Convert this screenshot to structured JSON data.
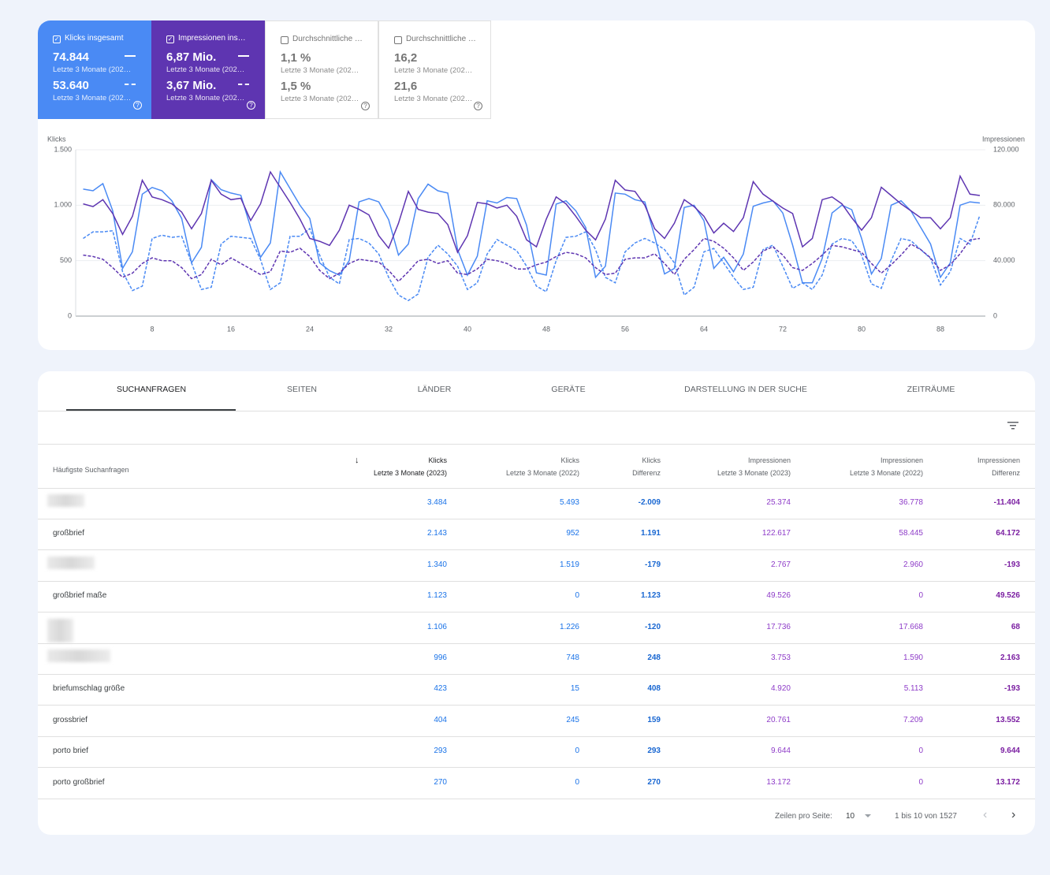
{
  "metrics": [
    {
      "label": "Klicks insgesamt",
      "current": "74.844",
      "current_period": "Letzte 3 Monate (202…",
      "previous": "53.640",
      "previous_period": "Letzte 3 Monate (202…",
      "checked": true,
      "color": "#4a8af4"
    },
    {
      "label": "Impressionen ins…",
      "current": "6,87 Mio.",
      "current_period": "Letzte 3 Monate (202…",
      "previous": "3,67 Mio.",
      "previous_period": "Letzte 3 Monate (202…",
      "checked": true,
      "color": "#5e35b1"
    },
    {
      "label": "Durchschnittliche …",
      "current": "1,1 %",
      "current_period": "Letzte 3 Monate (202…",
      "previous": "1,5 %",
      "previous_period": "Letzte 3 Monate (202…",
      "checked": false,
      "color": "#ffffff"
    },
    {
      "label": "Durchschnittliche …",
      "current": "16,2",
      "current_period": "Letzte 3 Monate (202…",
      "previous": "21,6",
      "previous_period": "Letzte 3 Monate (202…",
      "checked": false,
      "color": "#ffffff"
    }
  ],
  "chart_data": {
    "type": "line",
    "y_label": "Klicks",
    "y2_label": "Impressionen",
    "x": [
      1,
      2,
      3,
      4,
      5,
      6,
      7,
      8,
      9,
      10,
      11,
      12,
      13,
      14,
      15,
      16,
      17,
      18,
      19,
      20,
      21,
      22,
      23,
      24,
      25,
      26,
      27,
      28,
      29,
      30,
      31,
      32,
      33,
      34,
      35,
      36,
      37,
      38,
      39,
      40,
      41,
      42,
      43,
      44,
      45,
      46,
      47,
      48,
      49,
      50,
      51,
      52,
      53,
      54,
      55,
      56,
      57,
      58,
      59,
      60,
      61,
      62,
      63,
      64,
      65,
      66,
      67,
      68,
      69,
      70,
      71,
      72,
      73,
      74,
      75,
      76,
      77,
      78,
      79,
      80,
      81,
      82,
      83,
      84,
      85,
      86,
      87,
      88,
      89,
      90,
      91,
      92
    ],
    "xlim": [
      0.24,
      92.56
    ],
    "xticks": [
      8,
      16,
      24,
      32,
      40,
      48,
      56,
      64,
      72,
      80,
      88
    ],
    "ylim": [
      0,
      1500
    ],
    "yticks": [
      0,
      500,
      {
        "value": 1000,
        "label": "1.000"
      },
      {
        "value": 1500,
        "label": "1.500"
      }
    ],
    "y2lim": [
      0,
      120000
    ],
    "y2ticks": [
      0,
      {
        "value": 40000,
        "label": "40.000"
      },
      {
        "value": 80000,
        "label": "80.000"
      },
      {
        "value": 120000,
        "label": "120.000"
      }
    ],
    "grid": true,
    "series": [
      {
        "color": "#4a8af4",
        "dashed": false,
        "axis": "y",
        "values": [
          1145,
          1130,
          1195,
          950,
          430,
          580,
          1100,
          1160,
          1130,
          1040,
          880,
          480,
          620,
          1230,
          1140,
          1110,
          1090,
          800,
          530,
          660,
          1300,
          1150,
          1000,
          880,
          480,
          410,
          370,
          500,
          1030,
          1060,
          1030,
          870,
          550,
          650,
          1060,
          1190,
          1130,
          1110,
          600,
          370,
          540,
          1040,
          1020,
          1070,
          1060,
          820,
          390,
          370,
          1010,
          1040,
          950,
          800,
          350,
          450,
          1110,
          1100,
          1050,
          1030,
          720,
          380,
          430,
          980,
          1000,
          860,
          430,
          530,
          400,
          560,
          990,
          1020,
          1040,
          930,
          640,
          300,
          300,
          520,
          930,
          1000,
          960,
          700,
          380,
          520,
          1000,
          1040,
          950,
          800,
          650,
          350,
          480,
          1000,
          1030,
          1020
        ]
      },
      {
        "color": "#4a8af4",
        "dashed": true,
        "axis": "y",
        "values": [
          700,
          760,
          760,
          770,
          400,
          230,
          270,
          700,
          730,
          710,
          720,
          480,
          240,
          260,
          650,
          720,
          710,
          700,
          510,
          240,
          300,
          720,
          720,
          790,
          550,
          350,
          290,
          690,
          700,
          660,
          560,
          350,
          190,
          140,
          200,
          530,
          640,
          560,
          450,
          240,
          300,
          560,
          690,
          640,
          590,
          450,
          270,
          220,
          500,
          710,
          720,
          760,
          600,
          350,
          300,
          580,
          660,
          700,
          660,
          600,
          480,
          190,
          260,
          580,
          610,
          480,
          350,
          240,
          260,
          600,
          640,
          450,
          250,
          300,
          240,
          370,
          650,
          700,
          680,
          550,
          290,
          250,
          500,
          700,
          680,
          600,
          520,
          280,
          400,
          700,
          650,
          910
        ]
      },
      {
        "color": "#5e35b1",
        "dashed": false,
        "axis": "y2",
        "values": [
          81000,
          79000,
          84000,
          74000,
          59000,
          72000,
          98000,
          86000,
          84000,
          81000,
          75000,
          63000,
          74000,
          98000,
          88000,
          84000,
          85000,
          69000,
          81000,
          104000,
          93000,
          82000,
          70000,
          56000,
          54000,
          51000,
          62000,
          80000,
          77000,
          73000,
          58000,
          49000,
          67000,
          90000,
          77000,
          75000,
          74000,
          66000,
          46000,
          58000,
          82000,
          81000,
          78000,
          80000,
          72000,
          55000,
          50000,
          70000,
          86000,
          81000,
          72000,
          62000,
          55000,
          70000,
          98000,
          91000,
          90000,
          80000,
          63000,
          56000,
          67000,
          84000,
          79000,
          72000,
          60000,
          67000,
          61000,
          71000,
          97000,
          88000,
          83000,
          78000,
          74000,
          50000,
          56000,
          84000,
          86000,
          81000,
          71000,
          62000,
          71000,
          93000,
          87000,
          81000,
          76000,
          71000,
          71000,
          63000,
          71000,
          101000,
          88000,
          87000
        ]
      },
      {
        "color": "#5e35b1",
        "dashed": true,
        "axis": "y2",
        "values": [
          44000,
          43000,
          41000,
          35000,
          28000,
          31000,
          38000,
          42000,
          40000,
          40000,
          35000,
          27000,
          30000,
          41000,
          37000,
          42000,
          38000,
          34000,
          30000,
          32000,
          47000,
          46000,
          49000,
          43000,
          33000,
          27000,
          31000,
          38000,
          41000,
          40000,
          39000,
          33000,
          25000,
          32000,
          40000,
          41000,
          38000,
          40000,
          31000,
          30000,
          34000,
          41000,
          40000,
          38000,
          34000,
          34000,
          37000,
          39000,
          43000,
          46000,
          45000,
          42000,
          35000,
          30000,
          31000,
          41000,
          42000,
          42000,
          45000,
          38000,
          30000,
          41000,
          48000,
          56000,
          54000,
          49000,
          42000,
          33000,
          39000,
          47000,
          50000,
          44000,
          35000,
          33000,
          38000,
          44000,
          51000,
          50000,
          48000,
          46000,
          38000,
          31000,
          37000,
          44000,
          52000,
          48000,
          42000,
          33000,
          37000,
          45000,
          55000,
          56000
        ]
      }
    ]
  },
  "tabs": [
    "SUCHANFRAGEN",
    "SEITEN",
    "LÄNDER",
    "GERÄTE",
    "DARSTELLUNG IN DER SUCHE",
    "ZEITRÄUME"
  ],
  "table": {
    "query_header": "Häufigste Suchanfragen",
    "columns": [
      {
        "metric": "Klicks",
        "period": "Letzte 3 Monate (2023)"
      },
      {
        "metric": "Klicks",
        "period": "Letzte 3 Monate (2022)"
      },
      {
        "metric": "Klicks",
        "period": "Differenz"
      },
      {
        "metric": "Impressionen",
        "period": "Letzte 3 Monate (2023)"
      },
      {
        "metric": "Impressionen",
        "period": "Letzte 3 Monate (2022)"
      },
      {
        "metric": "Impressionen",
        "period": "Differenz"
      }
    ],
    "rows": [
      {
        "query": null,
        "cells": [
          "3.484",
          "5.493",
          "-2.009",
          "25.374",
          "36.778",
          "-11.404"
        ]
      },
      {
        "query": "großbrief",
        "cells": [
          "2.143",
          "952",
          "1.191",
          "122.617",
          "58.445",
          "64.172"
        ]
      },
      {
        "query": null,
        "cells": [
          "1.340",
          "1.519",
          "-179",
          "2.767",
          "2.960",
          "-193"
        ]
      },
      {
        "query": "großbrief maße",
        "cells": [
          "1.123",
          "0",
          "1.123",
          "49.526",
          "0",
          "49.526"
        ]
      },
      {
        "query": null,
        "cells": [
          "1.106",
          "1.226",
          "-120",
          "17.736",
          "17.668",
          "68"
        ]
      },
      {
        "query": null,
        "cells": [
          "996",
          "748",
          "248",
          "3.753",
          "1.590",
          "2.163"
        ]
      },
      {
        "query": "briefumschlag größe",
        "cells": [
          "423",
          "15",
          "408",
          "4.920",
          "5.113",
          "-193"
        ]
      },
      {
        "query": "grossbrief",
        "cells": [
          "404",
          "245",
          "159",
          "20.761",
          "7.209",
          "13.552"
        ]
      },
      {
        "query": "porto brief",
        "cells": [
          "293",
          "0",
          "293",
          "9.644",
          "0",
          "9.644"
        ]
      },
      {
        "query": "porto großbrief",
        "cells": [
          "270",
          "0",
          "270",
          "13.172",
          "0",
          "13.172"
        ]
      }
    ]
  },
  "footer": {
    "rows_per_page_label": "Zeilen pro Seite:",
    "rows_per_page": "10",
    "range": "1 bis 10 von 1527"
  }
}
